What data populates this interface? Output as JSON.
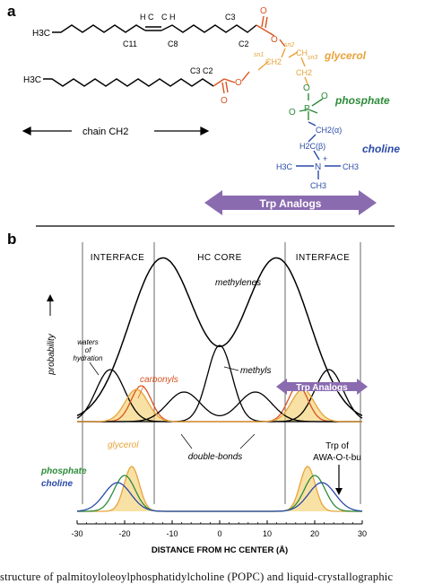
{
  "panel_a": {
    "label": "a",
    "chain1": {
      "h3c": "H3C",
      "c11": "C11",
      "c8": "C8",
      "c3": "C3",
      "c2": "C2",
      "hc": "H C",
      "ch": "C H"
    },
    "chain2": {
      "h3c": "H3C",
      "c3": "C3",
      "c2": "C2"
    },
    "glycerol_atoms": {
      "sn2": "sn2",
      "sn1": "sn1",
      "sn3": "sn3",
      "ch2_a": "CH2",
      "ch": "CH",
      "ch2_b": "CH2"
    },
    "phosphate_atoms": {
      "o1": "O",
      "p": "P",
      "o2": "O",
      "o3": "O"
    },
    "choline_atoms": {
      "ch2_alpha": "CH2(α)",
      "h2c_beta": "H2C(β)",
      "n": "N",
      "h3c": "H3C",
      "ch3_a": "CH3",
      "ch3_b": "CH3",
      "plus": "+"
    },
    "labels": {
      "glycerol": "glycerol",
      "phosphate": "phosphate",
      "choline": "choline",
      "chain": "chain CH2"
    },
    "trp_arrow": "Trp Analogs",
    "colors": {
      "chain": "#000000",
      "glycerol": "#e8a33a",
      "carbonyl": "#d9531e",
      "phosphate": "#2e8b3a",
      "choline": "#2a4aa8",
      "trp": "#8a6bb0"
    }
  },
  "panel_b": {
    "label": "b",
    "region_labels": {
      "left": "INTERFACE",
      "center": "HC CORE",
      "right": "INTERFACE"
    },
    "ylabel": "probability",
    "xlabel": "DISTANCE FROM HC CENTER (Å)",
    "annotations": {
      "methylenes": "methylenes",
      "waters": [
        "waters",
        "of",
        "hydration"
      ],
      "carbonyls": "carbonyls",
      "methyls": "methyls",
      "double_bonds": "double-bonds",
      "glycerol": "glycerol",
      "phosphate": "phosphate",
      "choline": "choline",
      "trp_box": "Trp Analogs",
      "trp_of": "Trp of",
      "awa": "AWA-O-t-bu"
    }
  },
  "chart_data": {
    "type": "line",
    "xlabel": "DISTANCE FROM HC CENTER (Å)",
    "ylabel": "probability",
    "xlim": [
      -30,
      30
    ],
    "x_ticks": [
      -30,
      -20,
      -10,
      0,
      10,
      20,
      30
    ],
    "region_boundaries": [
      -27,
      -13,
      13,
      27
    ],
    "series": [
      {
        "name": "methylenes",
        "color": "#000000",
        "components": [
          {
            "center": -12,
            "height": 1.0
          },
          {
            "center": 12,
            "height": 1.0
          }
        ]
      },
      {
        "name": "waters of hydration",
        "color": "#000000",
        "components": [
          {
            "center": -23,
            "height": 0.32
          },
          {
            "center": 23,
            "height": 0.32
          }
        ]
      },
      {
        "name": "carbonyls",
        "color": "#d9531e",
        "components": [
          {
            "center": -16.5,
            "height": 0.22
          },
          {
            "center": 16.5,
            "height": 0.22
          }
        ]
      },
      {
        "name": "methyls",
        "color": "#000000",
        "components": [
          {
            "center": 0,
            "height": 0.47
          }
        ]
      },
      {
        "name": "double-bonds",
        "color": "#000000",
        "components": [
          {
            "center": -7.5,
            "height": 0.18
          },
          {
            "center": 7.5,
            "height": 0.18
          }
        ]
      },
      {
        "name": "Trp Analogs",
        "color": "#e8a33a",
        "components": [
          {
            "center": -17.5,
            "height": 0.2
          },
          {
            "center": 17.5,
            "height": 0.2
          }
        ]
      },
      {
        "name": "glycerol",
        "color": "#e8a33a",
        "components": [
          {
            "center": -18.5,
            "height": 0.7
          },
          {
            "center": 18.5,
            "height": 0.7
          }
        ]
      },
      {
        "name": "phosphate",
        "color": "#2e8b3a",
        "components": [
          {
            "center": -20,
            "height": 0.55
          },
          {
            "center": 20,
            "height": 0.55
          }
        ]
      },
      {
        "name": "choline",
        "color": "#2a4aa8",
        "components": [
          {
            "center": -21.5,
            "height": 0.45
          },
          {
            "center": 21.5,
            "height": 0.45
          }
        ]
      }
    ]
  },
  "caption": "structure of palmitoyloleoylphosphatidylcholine (POPC) and liquid-crystallographic"
}
